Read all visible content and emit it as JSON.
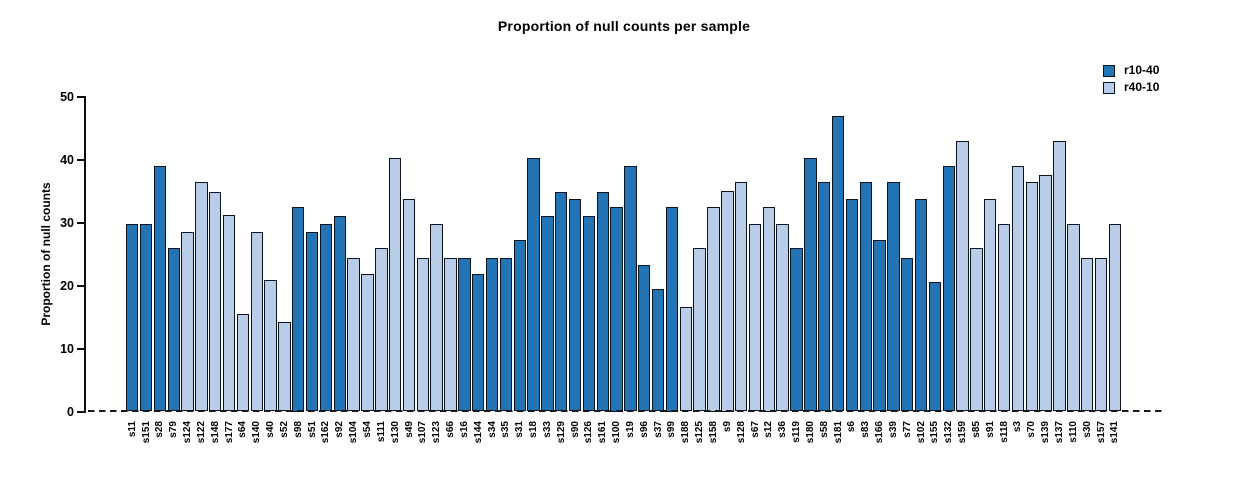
{
  "header": {
    "title": "Proportion of null counts per sample"
  },
  "legend": {
    "position": "top-right",
    "items": [
      {
        "label": "r10-40",
        "color": "#2374b5"
      },
      {
        "label": "r40-10",
        "color": "#b9cde8"
      }
    ]
  },
  "chart_data": {
    "type": "bar",
    "title": "Proportion of null counts per sample",
    "xlabel": "",
    "ylabel": "Proportion of null counts",
    "ylim": [
      0,
      50
    ],
    "yticks": [
      0,
      10,
      20,
      30,
      40,
      50
    ],
    "grid": false,
    "legend_position": "top-right",
    "zero_line": "dashed black horizontal line at y=0",
    "series": [
      {
        "name": "r10-40",
        "color": "#2374b5"
      },
      {
        "name": "r40-10",
        "color": "#b9cde8"
      }
    ],
    "categories": [
      "s11",
      "s151",
      "s28",
      "s79",
      "s124",
      "s122",
      "s148",
      "s177",
      "s64",
      "s140",
      "s40",
      "s52",
      "s98",
      "s51",
      "s162",
      "s92",
      "s104",
      "s54",
      "s111",
      "s130",
      "s49",
      "s107",
      "s123",
      "s66",
      "s16",
      "s144",
      "s34",
      "s35",
      "s31",
      "s18",
      "s33",
      "s129",
      "s90",
      "s126",
      "s161",
      "s100",
      "s19",
      "s96",
      "s37",
      "s99",
      "s188",
      "s125",
      "s158",
      "s9",
      "s128",
      "s67",
      "s12",
      "s36",
      "s119",
      "s180",
      "s58",
      "s181",
      "s6",
      "s83",
      "s166",
      "s39",
      "s77",
      "s102",
      "s155",
      "s132",
      "s159",
      "s85",
      "s91",
      "s118",
      "s3",
      "s70",
      "s139",
      "s137",
      "s110",
      "s30",
      "s157",
      "s141"
    ],
    "values": [
      29.7,
      29.7,
      39.0,
      25.9,
      28.5,
      36.4,
      34.9,
      31.2,
      15.4,
      28.5,
      20.8,
      14.2,
      32.5,
      28.5,
      29.7,
      31.1,
      24.4,
      21.9,
      25.9,
      40.2,
      33.8,
      24.4,
      29.7,
      24.4,
      24.4,
      21.9,
      24.4,
      24.4,
      27.2,
      40.2,
      31.1,
      34.9,
      33.8,
      31.1,
      34.9,
      32.5,
      39.0,
      23.2,
      19.4,
      32.5,
      16.6,
      25.9,
      32.5,
      35.0,
      36.4,
      29.7,
      32.5,
      29.7,
      25.9,
      40.2,
      36.4,
      46.9,
      33.8,
      36.4,
      27.2,
      36.4,
      24.4,
      33.8,
      20.6,
      38.9,
      42.9,
      25.9,
      33.8,
      29.7,
      38.9,
      36.4,
      37.6,
      42.9,
      29.7,
      24.4,
      24.4,
      29.7
    ],
    "series_by_bar": [
      "r10-40",
      "r10-40",
      "r10-40",
      "r10-40",
      "r40-10",
      "r40-10",
      "r40-10",
      "r40-10",
      "r40-10",
      "r40-10",
      "r40-10",
      "r40-10",
      "r10-40",
      "r10-40",
      "r10-40",
      "r10-40",
      "r40-10",
      "r40-10",
      "r40-10",
      "r40-10",
      "r40-10",
      "r40-10",
      "r40-10",
      "r40-10",
      "r10-40",
      "r10-40",
      "r10-40",
      "r10-40",
      "r10-40",
      "r10-40",
      "r10-40",
      "r10-40",
      "r10-40",
      "r10-40",
      "r10-40",
      "r10-40",
      "r10-40",
      "r10-40",
      "r10-40",
      "r10-40",
      "r40-10",
      "r40-10",
      "r40-10",
      "r40-10",
      "r40-10",
      "r40-10",
      "r40-10",
      "r40-10",
      "r10-40",
      "r10-40",
      "r10-40",
      "r10-40",
      "r10-40",
      "r10-40",
      "r10-40",
      "r10-40",
      "r10-40",
      "r10-40",
      "r10-40",
      "r10-40",
      "r40-10",
      "r40-10",
      "r40-10",
      "r40-10",
      "r40-10",
      "r40-10",
      "r40-10",
      "r40-10",
      "r40-10",
      "r40-10",
      "r40-10",
      "r40-10"
    ]
  }
}
